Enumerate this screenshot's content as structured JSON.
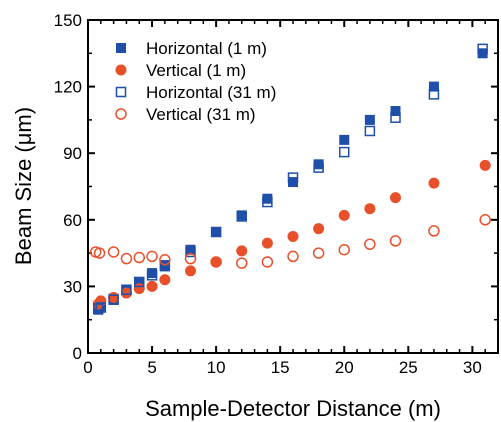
{
  "chart_data": {
    "type": "scatter",
    "xlabel": "Sample-Detector Distance (m)",
    "ylabel": "Beam Size (μm)",
    "xlim": [
      0,
      32
    ],
    "ylim": [
      0,
      150
    ],
    "xticks": [
      0,
      5,
      10,
      15,
      20,
      25,
      30
    ],
    "yticks": [
      0,
      30,
      60,
      90,
      120,
      150
    ],
    "grid": false,
    "legend_position": "top-left",
    "series": [
      {
        "name": "Horizontal (1 m)",
        "marker": "square-filled",
        "color": "#1f4fa8",
        "x": [
          0.8,
          1,
          2,
          3,
          4,
          5,
          6,
          8,
          10,
          12,
          14,
          16,
          18,
          20,
          22,
          24,
          27,
          30.8
        ],
        "y": [
          19.5,
          21,
          24.5,
          28,
          31.5,
          36,
          39,
          46.5,
          54.5,
          62,
          69.5,
          77,
          85,
          96,
          105,
          109,
          120,
          135
        ]
      },
      {
        "name": "Vertical (1 m)",
        "marker": "circle-filled",
        "color": "#e8502a",
        "x": [
          0.8,
          1,
          2,
          3,
          4,
          5,
          6,
          8,
          10,
          12,
          14,
          16,
          18,
          20,
          22,
          24,
          27,
          31
        ],
        "y": [
          22,
          23.5,
          25,
          27,
          29,
          30,
          33,
          37,
          41,
          46,
          49.5,
          52.5,
          56,
          62,
          65,
          70,
          76.5,
          84.5
        ]
      },
      {
        "name": "Horizontal (31 m)",
        "marker": "square-open",
        "color": "#1f4fa8",
        "x": [
          0.8,
          1,
          2,
          3,
          4,
          5,
          6,
          8,
          10,
          12,
          14,
          16,
          18,
          20,
          22,
          24,
          27,
          30.8
        ],
        "y": [
          20,
          20.5,
          24,
          28.5,
          32,
          35,
          39.5,
          45.5,
          54.5,
          61.5,
          68,
          79,
          83.5,
          90.5,
          100,
          106,
          116.5,
          137
        ]
      },
      {
        "name": "Vertical (31 m)",
        "marker": "circle-open",
        "color": "#e8502a",
        "x": [
          0.6,
          0.9,
          2,
          3,
          4,
          5,
          6,
          8,
          10,
          12,
          14,
          16,
          18,
          20,
          22,
          24,
          27,
          31
        ],
        "y": [
          45.5,
          45,
          45.5,
          42.5,
          43,
          43.5,
          42,
          42.5,
          41,
          40.5,
          41,
          43.5,
          45,
          46.5,
          49,
          50.5,
          55,
          60
        ]
      }
    ]
  }
}
